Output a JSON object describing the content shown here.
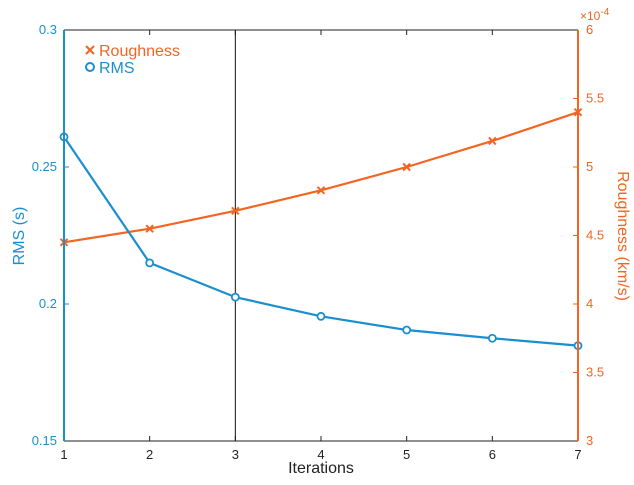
{
  "chart_data": {
    "type": "line",
    "x": [
      1,
      2,
      3,
      4,
      5,
      6,
      7
    ],
    "xlabel": "Iterations",
    "xlim": [
      1,
      7
    ],
    "xticks": [
      "1",
      "2",
      "3",
      "4",
      "5",
      "6",
      "7"
    ],
    "left_axis": {
      "label": "RMS (s)",
      "lim": [
        0.15,
        0.3
      ],
      "ticks": [
        0.15,
        0.2,
        0.25,
        0.3
      ],
      "tick_labels": [
        "0.15",
        "0.2",
        "0.25",
        "0.3"
      ],
      "color": "#1a8fce"
    },
    "right_axis": {
      "label": "Roughness (km/s)",
      "lim": [
        3,
        6
      ],
      "ticks": [
        3,
        3.5,
        4,
        4.5,
        5,
        5.5,
        6
      ],
      "tick_labels": [
        "3",
        "3.5",
        "4",
        "4.5",
        "5",
        "5.5",
        "6"
      ],
      "multiplier": "×10",
      "multiplier_exp": "-4",
      "color": "#f26522"
    },
    "series": [
      {
        "name": "Roughness",
        "axis": "right",
        "marker": "x",
        "color": "#f26522",
        "values": [
          4.45,
          4.55,
          4.68,
          4.83,
          5.0,
          5.19,
          5.4
        ]
      },
      {
        "name": "RMS",
        "axis": "left",
        "marker": "o",
        "color": "#1a8fce",
        "values": [
          0.261,
          0.215,
          0.2025,
          0.1955,
          0.1905,
          0.1875,
          0.1848
        ]
      }
    ],
    "vertical_line_x": 3,
    "legend_position": "top-left",
    "grid": false
  }
}
